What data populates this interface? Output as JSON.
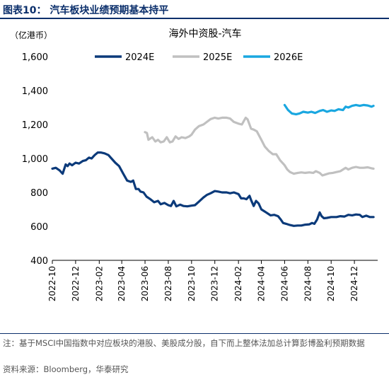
{
  "figure": {
    "title": "图表10： 汽车板块业绩预期基本持平",
    "note": "注：基于MSCI中国指数中对应板块的港股、美股成分股，自下而上整体法加总计算彭博盈利预期数据",
    "source": "资料来源：Bloomberg，华泰研究"
  },
  "colors": {
    "s2024": "#0b3a7a",
    "s2025": "#c0c0c0",
    "s2026": "#1aa7e0",
    "brand": "#0b2f6b"
  },
  "chart_data": {
    "type": "line",
    "title": "海外中资股-汽车",
    "unit_label": "（亿港币）",
    "ylim": [
      400,
      1600
    ],
    "yticks": [
      400,
      600,
      800,
      1000,
      1200,
      1400,
      1600
    ],
    "ytick_labels": [
      "400",
      "600",
      "800",
      "1,000",
      "1,200",
      "1,400",
      "1,600"
    ],
    "xlim": [
      "2022-10-01",
      "2025-01-31"
    ],
    "xtick_labels": [
      "2022-10",
      "2022-12",
      "2023-02",
      "2023-04",
      "2023-06",
      "2023-08",
      "2023-10",
      "2023-12",
      "2024-02",
      "2024-04",
      "2024-06",
      "2024-08",
      "2024-10",
      "2024-12"
    ],
    "grid": false,
    "legend_position": "top",
    "series": [
      {
        "name": "2024E",
        "color": "#0b3a7a",
        "width": 3.2,
        "points": [
          [
            "2022-10-01",
            940
          ],
          [
            "2022-10-10",
            945
          ],
          [
            "2022-10-20",
            930
          ],
          [
            "2022-10-28",
            910
          ],
          [
            "2022-11-05",
            965
          ],
          [
            "2022-11-10",
            955
          ],
          [
            "2022-11-15",
            970
          ],
          [
            "2022-11-22",
            960
          ],
          [
            "2022-12-01",
            975
          ],
          [
            "2022-12-10",
            970
          ],
          [
            "2022-12-20",
            985
          ],
          [
            "2022-12-28",
            990
          ],
          [
            "2023-01-05",
            1005
          ],
          [
            "2023-01-12",
            1000
          ],
          [
            "2023-01-20",
            1020
          ],
          [
            "2023-01-28",
            1035
          ],
          [
            "2023-02-05",
            1035
          ],
          [
            "2023-02-15",
            1030
          ],
          [
            "2023-02-25",
            1020
          ],
          [
            "2023-03-05",
            1000
          ],
          [
            "2023-03-15",
            975
          ],
          [
            "2023-03-25",
            955
          ],
          [
            "2023-04-05",
            910
          ],
          [
            "2023-04-15",
            870
          ],
          [
            "2023-04-25",
            862
          ],
          [
            "2023-05-01",
            870
          ],
          [
            "2023-05-08",
            820
          ],
          [
            "2023-05-15",
            820
          ],
          [
            "2023-05-20",
            805
          ],
          [
            "2023-05-28",
            800
          ],
          [
            "2023-06-05",
            775
          ],
          [
            "2023-06-15",
            760
          ],
          [
            "2023-06-25",
            742
          ],
          [
            "2023-07-05",
            750
          ],
          [
            "2023-07-12",
            730
          ],
          [
            "2023-07-22",
            738
          ],
          [
            "2023-08-01",
            725
          ],
          [
            "2023-08-08",
            720
          ],
          [
            "2023-08-15",
            750
          ],
          [
            "2023-08-22",
            718
          ],
          [
            "2023-09-01",
            728
          ],
          [
            "2023-09-10",
            720
          ],
          [
            "2023-09-20",
            718
          ],
          [
            "2023-10-01",
            722
          ],
          [
            "2023-10-10",
            725
          ],
          [
            "2023-10-20",
            745
          ],
          [
            "2023-11-01",
            770
          ],
          [
            "2023-11-10",
            785
          ],
          [
            "2023-11-20",
            795
          ],
          [
            "2023-12-01",
            808
          ],
          [
            "2023-12-10",
            805
          ],
          [
            "2023-12-20",
            800
          ],
          [
            "2024-01-01",
            800
          ],
          [
            "2024-01-10",
            795
          ],
          [
            "2024-01-20",
            800
          ],
          [
            "2024-02-01",
            790
          ],
          [
            "2024-02-08",
            765
          ],
          [
            "2024-02-15",
            765
          ],
          [
            "2024-02-22",
            760
          ],
          [
            "2024-03-01",
            780
          ],
          [
            "2024-03-05",
            755
          ],
          [
            "2024-03-12",
            720
          ],
          [
            "2024-03-18",
            750
          ],
          [
            "2024-03-25",
            735
          ],
          [
            "2024-04-01",
            700
          ],
          [
            "2024-04-08",
            690
          ],
          [
            "2024-04-15",
            680
          ],
          [
            "2024-04-25",
            665
          ],
          [
            "2024-05-05",
            668
          ],
          [
            "2024-05-15",
            660
          ],
          [
            "2024-05-22",
            640
          ],
          [
            "2024-05-28",
            620
          ],
          [
            "2024-06-05",
            615
          ],
          [
            "2024-06-15",
            608
          ],
          [
            "2024-06-25",
            603
          ],
          [
            "2024-07-05",
            605
          ],
          [
            "2024-07-15",
            605
          ],
          [
            "2024-07-25",
            610
          ],
          [
            "2024-08-05",
            612
          ],
          [
            "2024-08-12",
            620
          ],
          [
            "2024-08-18",
            615
          ],
          [
            "2024-08-25",
            640
          ],
          [
            "2024-09-01",
            682
          ],
          [
            "2024-09-06",
            660
          ],
          [
            "2024-09-12",
            648
          ],
          [
            "2024-09-20",
            650
          ],
          [
            "2024-10-01",
            655
          ],
          [
            "2024-10-15",
            655
          ],
          [
            "2024-10-25",
            660
          ],
          [
            "2024-11-05",
            658
          ],
          [
            "2024-11-15",
            668
          ],
          [
            "2024-11-25",
            665
          ],
          [
            "2024-12-05",
            670
          ],
          [
            "2024-12-15",
            668
          ],
          [
            "2024-12-22",
            655
          ],
          [
            "2025-01-01",
            663
          ],
          [
            "2025-01-10",
            655
          ],
          [
            "2025-01-20",
            655
          ]
        ]
      },
      {
        "name": "2025E",
        "color": "#c0c0c0",
        "width": 3.2,
        "points": [
          [
            "2023-06-01",
            1155
          ],
          [
            "2023-06-06",
            1150
          ],
          [
            "2023-06-10",
            1110
          ],
          [
            "2023-06-20",
            1125
          ],
          [
            "2023-06-28",
            1100
          ],
          [
            "2023-07-05",
            1110
          ],
          [
            "2023-07-12",
            1095
          ],
          [
            "2023-07-20",
            1100
          ],
          [
            "2023-07-28",
            1125
          ],
          [
            "2023-08-05",
            1095
          ],
          [
            "2023-08-12",
            1100
          ],
          [
            "2023-08-20",
            1130
          ],
          [
            "2023-08-28",
            1115
          ],
          [
            "2023-09-05",
            1125
          ],
          [
            "2023-09-15",
            1120
          ],
          [
            "2023-09-25",
            1130
          ],
          [
            "2023-10-01",
            1140
          ],
          [
            "2023-10-10",
            1170
          ],
          [
            "2023-10-20",
            1190
          ],
          [
            "2023-11-01",
            1200
          ],
          [
            "2023-11-10",
            1215
          ],
          [
            "2023-11-20",
            1232
          ],
          [
            "2023-12-01",
            1240
          ],
          [
            "2023-12-10",
            1235
          ],
          [
            "2023-12-20",
            1240
          ],
          [
            "2024-01-01",
            1240
          ],
          [
            "2024-01-10",
            1235
          ],
          [
            "2024-01-20",
            1215
          ],
          [
            "2024-02-01",
            1205
          ],
          [
            "2024-02-10",
            1200
          ],
          [
            "2024-02-20",
            1240
          ],
          [
            "2024-02-25",
            1230
          ],
          [
            "2024-03-05",
            1175
          ],
          [
            "2024-03-12",
            1170
          ],
          [
            "2024-03-20",
            1160
          ],
          [
            "2024-04-01",
            1110
          ],
          [
            "2024-04-10",
            1070
          ],
          [
            "2024-04-20",
            1045
          ],
          [
            "2024-05-01",
            1025
          ],
          [
            "2024-05-10",
            1025
          ],
          [
            "2024-05-20",
            990
          ],
          [
            "2024-06-01",
            960
          ],
          [
            "2024-06-08",
            935
          ],
          [
            "2024-06-15",
            920
          ],
          [
            "2024-06-25",
            910
          ],
          [
            "2024-07-05",
            915
          ],
          [
            "2024-07-15",
            918
          ],
          [
            "2024-07-25",
            915
          ],
          [
            "2024-08-05",
            918
          ],
          [
            "2024-08-15",
            915
          ],
          [
            "2024-08-22",
            925
          ],
          [
            "2024-09-01",
            915
          ],
          [
            "2024-09-08",
            900
          ],
          [
            "2024-09-15",
            905
          ],
          [
            "2024-09-25",
            912
          ],
          [
            "2024-10-05",
            915
          ],
          [
            "2024-10-15",
            920
          ],
          [
            "2024-10-25",
            925
          ],
          [
            "2024-11-01",
            935
          ],
          [
            "2024-11-08",
            945
          ],
          [
            "2024-11-15",
            935
          ],
          [
            "2024-11-25",
            945
          ],
          [
            "2024-12-05",
            950
          ],
          [
            "2024-12-15",
            945
          ],
          [
            "2024-12-25",
            945
          ],
          [
            "2025-01-05",
            948
          ],
          [
            "2025-01-15",
            942
          ],
          [
            "2025-01-20",
            940
          ]
        ]
      },
      {
        "name": "2026E",
        "color": "#1aa7e0",
        "width": 3.2,
        "points": [
          [
            "2024-06-01",
            1315
          ],
          [
            "2024-06-10",
            1285
          ],
          [
            "2024-06-20",
            1265
          ],
          [
            "2024-07-01",
            1260
          ],
          [
            "2024-07-10",
            1265
          ],
          [
            "2024-07-20",
            1275
          ],
          [
            "2024-08-01",
            1270
          ],
          [
            "2024-08-10",
            1275
          ],
          [
            "2024-08-20",
            1268
          ],
          [
            "2024-09-01",
            1280
          ],
          [
            "2024-09-10",
            1285
          ],
          [
            "2024-09-20",
            1275
          ],
          [
            "2024-10-01",
            1283
          ],
          [
            "2024-10-10",
            1280
          ],
          [
            "2024-10-20",
            1290
          ],
          [
            "2024-11-01",
            1285
          ],
          [
            "2024-11-08",
            1305
          ],
          [
            "2024-11-15",
            1300
          ],
          [
            "2024-11-25",
            1310
          ],
          [
            "2024-12-05",
            1315
          ],
          [
            "2024-12-15",
            1310
          ],
          [
            "2024-12-25",
            1315
          ],
          [
            "2025-01-05",
            1312
          ],
          [
            "2025-01-15",
            1305
          ],
          [
            "2025-01-20",
            1310
          ]
        ]
      }
    ]
  }
}
